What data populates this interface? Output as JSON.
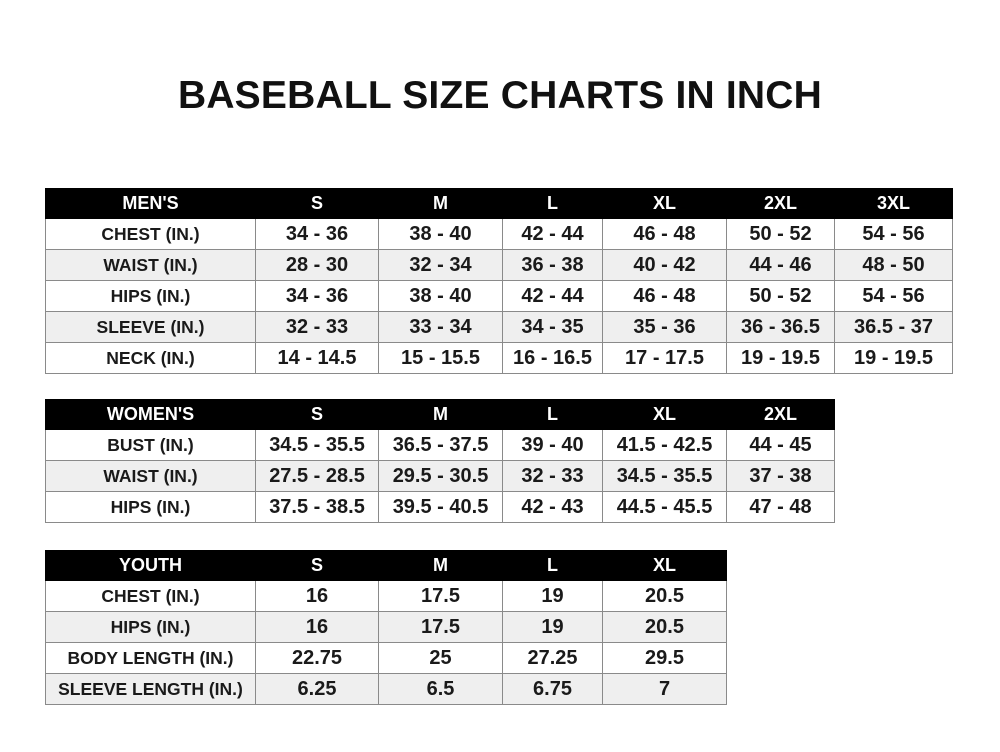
{
  "title": "BASEBALL SIZE CHARTS IN INCH",
  "colors": {
    "header_bg": "#000000",
    "header_text": "#ffffff",
    "alt_row": "#efefef",
    "border": "#8a8a8a"
  },
  "tables": [
    {
      "id": "men",
      "headers": [
        "MEN'S",
        "S",
        "M",
        "L",
        "XL",
        "2XL",
        "3XL"
      ],
      "rows": [
        [
          "CHEST (IN.)",
          "34 - 36",
          "38 - 40",
          "42 - 44",
          "46 - 48",
          "50 - 52",
          "54 - 56"
        ],
        [
          "WAIST (IN.)",
          "28 - 30",
          "32 - 34",
          "36 - 38",
          "40 - 42",
          "44 - 46",
          "48 - 50"
        ],
        [
          "HIPS (IN.)",
          "34 - 36",
          "38 - 40",
          "42 - 44",
          "46 - 48",
          "50 - 52",
          "54 - 56"
        ],
        [
          "SLEEVE (IN.)",
          "32 - 33",
          "33 - 34",
          "34 - 35",
          "35 - 36",
          "36 - 36.5",
          "36.5 - 37"
        ],
        [
          "NECK (IN.)",
          "14 - 14.5",
          "15 - 15.5",
          "16 - 16.5",
          "17 - 17.5",
          "19 - 19.5",
          "19 - 19.5"
        ]
      ]
    },
    {
      "id": "women",
      "headers": [
        "WOMEN'S",
        "S",
        "M",
        "L",
        "XL",
        "2XL"
      ],
      "rows": [
        [
          "BUST (IN.)",
          "34.5 - 35.5",
          "36.5 - 37.5",
          "39 - 40",
          "41.5 - 42.5",
          "44 - 45"
        ],
        [
          "WAIST (IN.)",
          "27.5 - 28.5",
          "29.5 - 30.5",
          "32 - 33",
          "34.5 - 35.5",
          "37 - 38"
        ],
        [
          "HIPS (IN.)",
          "37.5 - 38.5",
          "39.5 - 40.5",
          "42 - 43",
          "44.5 - 45.5",
          "47 - 48"
        ]
      ]
    },
    {
      "id": "youth",
      "headers": [
        "YOUTH",
        "S",
        "M",
        "L",
        "XL"
      ],
      "rows": [
        [
          "CHEST (IN.)",
          "16",
          "17.5",
          "19",
          "20.5"
        ],
        [
          "HIPS (IN.)",
          "16",
          "17.5",
          "19",
          "20.5"
        ],
        [
          "BODY LENGTH (IN.)",
          "22.75",
          "25",
          "27.25",
          "29.5"
        ],
        [
          "SLEEVE LENGTH (IN.)",
          "6.25",
          "6.5",
          "6.75",
          "7"
        ]
      ]
    }
  ]
}
